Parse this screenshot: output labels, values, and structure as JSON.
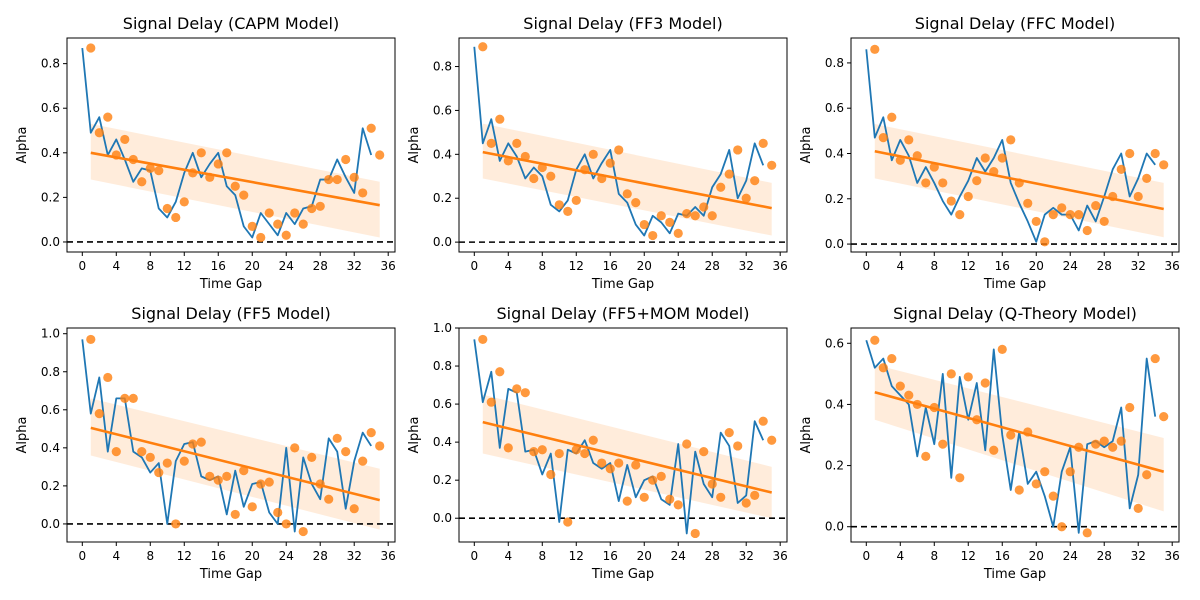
{
  "chart_data": [
    {
      "type": "scatter",
      "title": "Signal Delay (CAPM Model)",
      "xlabel": "Time Gap",
      "ylabel": "Alpha",
      "xticks": [
        0,
        4,
        8,
        12,
        16,
        20,
        24,
        28,
        32,
        36
      ],
      "yticks": [
        0.0,
        0.2,
        0.4,
        0.6,
        0.8
      ],
      "xlim": [
        -1.8,
        36.8
      ],
      "ylim": [
        -0.045,
        0.915
      ],
      "x": [
        1,
        2,
        3,
        4,
        5,
        6,
        7,
        8,
        9,
        10,
        11,
        12,
        13,
        14,
        15,
        16,
        17,
        18,
        19,
        20,
        21,
        22,
        23,
        24,
        25,
        26,
        27,
        28,
        29,
        30,
        31,
        32,
        33,
        34,
        35
      ],
      "y": [
        0.87,
        0.49,
        0.56,
        0.39,
        0.46,
        0.37,
        0.27,
        0.33,
        0.32,
        0.15,
        0.11,
        0.18,
        0.31,
        0.4,
        0.29,
        0.35,
        0.4,
        0.25,
        0.21,
        0.07,
        0.02,
        0.13,
        0.08,
        0.03,
        0.13,
        0.08,
        0.15,
        0.16,
        0.28,
        0.28,
        0.37,
        0.29,
        0.22,
        0.51,
        0.39
      ],
      "line_x": [
        0,
        1,
        2,
        3,
        4,
        5,
        6,
        7,
        8,
        9,
        10,
        11,
        12,
        13,
        14,
        15,
        16,
        17,
        18,
        19,
        20,
        21,
        22,
        23,
        24,
        25,
        26,
        27,
        28,
        29,
        30,
        31,
        32,
        33,
        34
      ],
      "line_y": [
        0.87,
        0.49,
        0.56,
        0.39,
        0.46,
        0.37,
        0.27,
        0.33,
        0.32,
        0.15,
        0.11,
        0.18,
        0.31,
        0.4,
        0.29,
        0.35,
        0.4,
        0.25,
        0.21,
        0.07,
        0.02,
        0.13,
        0.08,
        0.03,
        0.13,
        0.08,
        0.15,
        0.16,
        0.28,
        0.28,
        0.37,
        0.29,
        0.22,
        0.51,
        0.39
      ],
      "fit": {
        "x": [
          1,
          35
        ],
        "y": [
          0.4,
          0.165
        ]
      },
      "band": {
        "lower_start": 0.28,
        "upper_start": 0.53,
        "lower_end": 0.02,
        "upper_end": 0.27
      },
      "reference_line": 0.0,
      "colors": {
        "line": "#1f77b4",
        "points": "#ff7f0e",
        "fit": "#ff7f0e"
      }
    },
    {
      "type": "scatter",
      "title": "Signal Delay (FF3 Model)",
      "xlabel": "Time Gap",
      "ylabel": "Alpha",
      "xticks": [
        0,
        4,
        8,
        12,
        16,
        20,
        24,
        28,
        32,
        36
      ],
      "yticks": [
        0.0,
        0.2,
        0.4,
        0.6,
        0.8
      ],
      "xlim": [
        -1.8,
        36.8
      ],
      "ylim": [
        -0.045,
        0.93
      ],
      "x": [
        1,
        2,
        3,
        4,
        5,
        6,
        7,
        8,
        9,
        10,
        11,
        12,
        13,
        14,
        15,
        16,
        17,
        18,
        19,
        20,
        21,
        22,
        23,
        24,
        25,
        26,
        27,
        28,
        29,
        30,
        31,
        32,
        33,
        34,
        35
      ],
      "y": [
        0.89,
        0.45,
        0.56,
        0.37,
        0.45,
        0.39,
        0.29,
        0.34,
        0.3,
        0.17,
        0.14,
        0.19,
        0.33,
        0.4,
        0.29,
        0.36,
        0.42,
        0.22,
        0.18,
        0.08,
        0.03,
        0.12,
        0.09,
        0.04,
        0.13,
        0.12,
        0.16,
        0.12,
        0.25,
        0.31,
        0.42,
        0.2,
        0.28,
        0.45,
        0.35
      ],
      "line_x": [
        0,
        1,
        2,
        3,
        4,
        5,
        6,
        7,
        8,
        9,
        10,
        11,
        12,
        13,
        14,
        15,
        16,
        17,
        18,
        19,
        20,
        21,
        22,
        23,
        24,
        25,
        26,
        27,
        28,
        29,
        30,
        31,
        32,
        33,
        34
      ],
      "line_y": [
        0.89,
        0.45,
        0.56,
        0.37,
        0.45,
        0.39,
        0.29,
        0.34,
        0.3,
        0.17,
        0.14,
        0.19,
        0.33,
        0.4,
        0.29,
        0.36,
        0.42,
        0.22,
        0.18,
        0.08,
        0.03,
        0.12,
        0.09,
        0.04,
        0.13,
        0.12,
        0.16,
        0.12,
        0.25,
        0.31,
        0.42,
        0.2,
        0.28,
        0.45,
        0.35
      ],
      "fit": {
        "x": [
          1,
          35
        ],
        "y": [
          0.41,
          0.155
        ]
      },
      "band": {
        "lower_start": 0.29,
        "upper_start": 0.54,
        "lower_end": 0.03,
        "upper_end": 0.27
      },
      "reference_line": 0.0,
      "colors": {
        "line": "#1f77b4",
        "points": "#ff7f0e",
        "fit": "#ff7f0e"
      }
    },
    {
      "type": "scatter",
      "title": "Signal Delay (FFC Model)",
      "xlabel": "Time Gap",
      "ylabel": "Alpha",
      "xticks": [
        0,
        4,
        8,
        12,
        16,
        20,
        24,
        28,
        32,
        36
      ],
      "yticks": [
        0.0,
        0.2,
        0.4,
        0.6,
        0.8
      ],
      "xlim": [
        -1.8,
        36.8
      ],
      "ylim": [
        -0.035,
        0.91
      ],
      "x": [
        1,
        2,
        3,
        4,
        5,
        6,
        7,
        8,
        9,
        10,
        11,
        12,
        13,
        14,
        15,
        16,
        17,
        18,
        19,
        20,
        21,
        22,
        23,
        24,
        25,
        26,
        27,
        28,
        29,
        30,
        31,
        32,
        33,
        34,
        35
      ],
      "y": [
        0.86,
        0.47,
        0.56,
        0.37,
        0.46,
        0.39,
        0.27,
        0.34,
        0.27,
        0.19,
        0.13,
        0.21,
        0.28,
        0.38,
        0.32,
        0.38,
        0.46,
        0.27,
        0.18,
        0.1,
        0.01,
        0.13,
        0.16,
        0.13,
        0.13,
        0.06,
        0.17,
        0.1,
        0.21,
        0.33,
        0.4,
        0.21,
        0.29,
        0.4,
        0.35
      ],
      "line_x": [
        0,
        1,
        2,
        3,
        4,
        5,
        6,
        7,
        8,
        9,
        10,
        11,
        12,
        13,
        14,
        15,
        16,
        17,
        18,
        19,
        20,
        21,
        22,
        23,
        24,
        25,
        26,
        27,
        28,
        29,
        30,
        31,
        32,
        33,
        34
      ],
      "line_y": [
        0.86,
        0.47,
        0.56,
        0.37,
        0.46,
        0.39,
        0.27,
        0.34,
        0.27,
        0.19,
        0.13,
        0.21,
        0.28,
        0.38,
        0.32,
        0.38,
        0.46,
        0.27,
        0.18,
        0.1,
        0.01,
        0.13,
        0.16,
        0.13,
        0.13,
        0.06,
        0.17,
        0.1,
        0.21,
        0.33,
        0.4,
        0.21,
        0.29,
        0.4,
        0.35
      ],
      "fit": {
        "x": [
          1,
          35
        ],
        "y": [
          0.41,
          0.155
        ]
      },
      "band": {
        "lower_start": 0.29,
        "upper_start": 0.53,
        "lower_end": 0.03,
        "upper_end": 0.27
      },
      "reference_line": 0.0,
      "colors": {
        "line": "#1f77b4",
        "points": "#ff7f0e",
        "fit": "#ff7f0e"
      }
    },
    {
      "type": "scatter",
      "title": "Signal Delay (FF5 Model)",
      "xlabel": "Time Gap",
      "ylabel": "Alpha",
      "xticks": [
        0,
        4,
        8,
        12,
        16,
        20,
        24,
        28,
        32,
        36
      ],
      "yticks": [
        0.0,
        0.2,
        0.4,
        0.6,
        0.8,
        1.0
      ],
      "xlim": [
        -1.8,
        36.8
      ],
      "ylim": [
        -0.095,
        1.03
      ],
      "x": [
        1,
        2,
        3,
        4,
        5,
        6,
        7,
        8,
        9,
        10,
        11,
        12,
        13,
        14,
        15,
        16,
        17,
        18,
        19,
        20,
        21,
        22,
        23,
        24,
        25,
        26,
        27,
        28,
        29,
        30,
        31,
        32,
        33,
        34,
        35
      ],
      "y": [
        0.97,
        0.58,
        0.77,
        0.38,
        0.66,
        0.66,
        0.38,
        0.35,
        0.27,
        0.32,
        0.0,
        0.33,
        0.42,
        0.43,
        0.25,
        0.23,
        0.25,
        0.05,
        0.28,
        0.09,
        0.21,
        0.22,
        0.06,
        0.0,
        0.4,
        -0.04,
        0.35,
        0.21,
        0.13,
        0.45,
        0.38,
        0.08,
        0.33,
        0.48,
        0.41
      ],
      "line_x": [
        0,
        1,
        2,
        3,
        4,
        5,
        6,
        7,
        8,
        9,
        10,
        11,
        12,
        13,
        14,
        15,
        16,
        17,
        18,
        19,
        20,
        21,
        22,
        23,
        24,
        25,
        26,
        27,
        28,
        29,
        30,
        31,
        32,
        33,
        34
      ],
      "line_y": [
        0.97,
        0.58,
        0.77,
        0.38,
        0.66,
        0.66,
        0.38,
        0.35,
        0.27,
        0.32,
        0.0,
        0.33,
        0.42,
        0.43,
        0.25,
        0.23,
        0.25,
        0.05,
        0.28,
        0.09,
        0.21,
        0.22,
        0.06,
        0.0,
        0.4,
        -0.04,
        0.35,
        0.21,
        0.13,
        0.45,
        0.38,
        0.08,
        0.33,
        0.48,
        0.41
      ],
      "fit": {
        "x": [
          1,
          35
        ],
        "y": [
          0.505,
          0.125
        ]
      },
      "band": {
        "lower_start": 0.36,
        "upper_start": 0.66,
        "lower_end": -0.03,
        "upper_end": 0.29
      },
      "reference_line": 0.0,
      "colors": {
        "line": "#1f77b4",
        "points": "#ff7f0e",
        "fit": "#ff7f0e"
      }
    },
    {
      "type": "scatter",
      "title": "Signal Delay (FF5+MOM Model)",
      "xlabel": "Time Gap",
      "ylabel": "Alpha",
      "xticks": [
        0,
        4,
        8,
        12,
        16,
        20,
        24,
        28,
        32,
        36
      ],
      "yticks": [
        0.0,
        0.2,
        0.4,
        0.6,
        0.8,
        1.0
      ],
      "xlim": [
        -1.8,
        36.8
      ],
      "ylim": [
        -0.125,
        1.0
      ],
      "x": [
        1,
        2,
        3,
        4,
        5,
        6,
        7,
        8,
        9,
        10,
        11,
        12,
        13,
        14,
        15,
        16,
        17,
        18,
        19,
        20,
        21,
        22,
        23,
        24,
        25,
        26,
        27,
        28,
        29,
        30,
        31,
        32,
        33,
        34,
        35
      ],
      "y": [
        0.94,
        0.61,
        0.77,
        0.37,
        0.68,
        0.66,
        0.35,
        0.36,
        0.23,
        0.34,
        -0.02,
        0.36,
        0.34,
        0.41,
        0.29,
        0.26,
        0.29,
        0.09,
        0.28,
        0.11,
        0.2,
        0.22,
        0.1,
        0.07,
        0.39,
        -0.08,
        0.35,
        0.18,
        0.11,
        0.45,
        0.38,
        0.08,
        0.12,
        0.51,
        0.41
      ],
      "line_x": [
        0,
        1,
        2,
        3,
        4,
        5,
        6,
        7,
        8,
        9,
        10,
        11,
        12,
        13,
        14,
        15,
        16,
        17,
        18,
        19,
        20,
        21,
        22,
        23,
        24,
        25,
        26,
        27,
        28,
        29,
        30,
        31,
        32,
        33,
        34
      ],
      "line_y": [
        0.94,
        0.61,
        0.77,
        0.37,
        0.68,
        0.66,
        0.35,
        0.36,
        0.23,
        0.34,
        -0.02,
        0.36,
        0.34,
        0.41,
        0.29,
        0.26,
        0.29,
        0.09,
        0.28,
        0.11,
        0.2,
        0.22,
        0.1,
        0.07,
        0.39,
        -0.08,
        0.35,
        0.18,
        0.11,
        0.45,
        0.38,
        0.08,
        0.12,
        0.51,
        0.41
      ],
      "fit": {
        "x": [
          1,
          35
        ],
        "y": [
          0.505,
          0.135
        ]
      },
      "band": {
        "lower_start": 0.34,
        "upper_start": 0.65,
        "lower_end": 0.0,
        "upper_end": 0.27
      },
      "reference_line": 0.0,
      "colors": {
        "line": "#1f77b4",
        "points": "#ff7f0e",
        "fit": "#ff7f0e"
      }
    },
    {
      "type": "scatter",
      "title": "Signal Delay (Q-Theory Model)",
      "xlabel": "Time Gap",
      "ylabel": "Alpha",
      "xticks": [
        0,
        4,
        8,
        12,
        16,
        20,
        24,
        28,
        32,
        36
      ],
      "yticks": [
        0.0,
        0.2,
        0.4,
        0.6
      ],
      "xlim": [
        -1.8,
        36.8
      ],
      "ylim": [
        -0.05,
        0.65
      ],
      "x": [
        1,
        2,
        3,
        4,
        5,
        6,
        7,
        8,
        9,
        10,
        11,
        12,
        13,
        14,
        15,
        16,
        17,
        18,
        19,
        20,
        21,
        22,
        23,
        24,
        25,
        26,
        27,
        28,
        29,
        30,
        31,
        32,
        33,
        34,
        35
      ],
      "y": [
        0.61,
        0.52,
        0.55,
        0.46,
        0.43,
        0.4,
        0.23,
        0.39,
        0.27,
        0.5,
        0.16,
        0.49,
        0.35,
        0.47,
        0.25,
        0.58,
        0.3,
        0.12,
        0.31,
        0.14,
        0.18,
        0.1,
        0.0,
        0.18,
        0.26,
        -0.02,
        0.27,
        0.28,
        0.26,
        0.28,
        0.39,
        0.06,
        0.17,
        0.55,
        0.36
      ],
      "line_x": [
        0,
        1,
        2,
        3,
        4,
        5,
        6,
        7,
        8,
        9,
        10,
        11,
        12,
        13,
        14,
        15,
        16,
        17,
        18,
        19,
        20,
        21,
        22,
        23,
        24,
        25,
        26,
        27,
        28,
        29,
        30,
        31,
        32,
        33,
        34
      ],
      "line_y": [
        0.61,
        0.52,
        0.55,
        0.46,
        0.43,
        0.4,
        0.23,
        0.39,
        0.27,
        0.5,
        0.16,
        0.49,
        0.35,
        0.47,
        0.25,
        0.58,
        0.3,
        0.12,
        0.31,
        0.14,
        0.18,
        0.1,
        0.0,
        0.18,
        0.26,
        -0.02,
        0.27,
        0.28,
        0.26,
        0.28,
        0.39,
        0.06,
        0.17,
        0.55,
        0.36
      ],
      "fit": {
        "x": [
          1,
          35
        ],
        "y": [
          0.44,
          0.18
        ]
      },
      "band": {
        "lower_start": 0.35,
        "upper_start": 0.53,
        "lower_end": 0.05,
        "upper_end": 0.29
      },
      "reference_line": 0.0,
      "colors": {
        "line": "#1f77b4",
        "points": "#ff7f0e",
        "fit": "#ff7f0e"
      }
    }
  ]
}
